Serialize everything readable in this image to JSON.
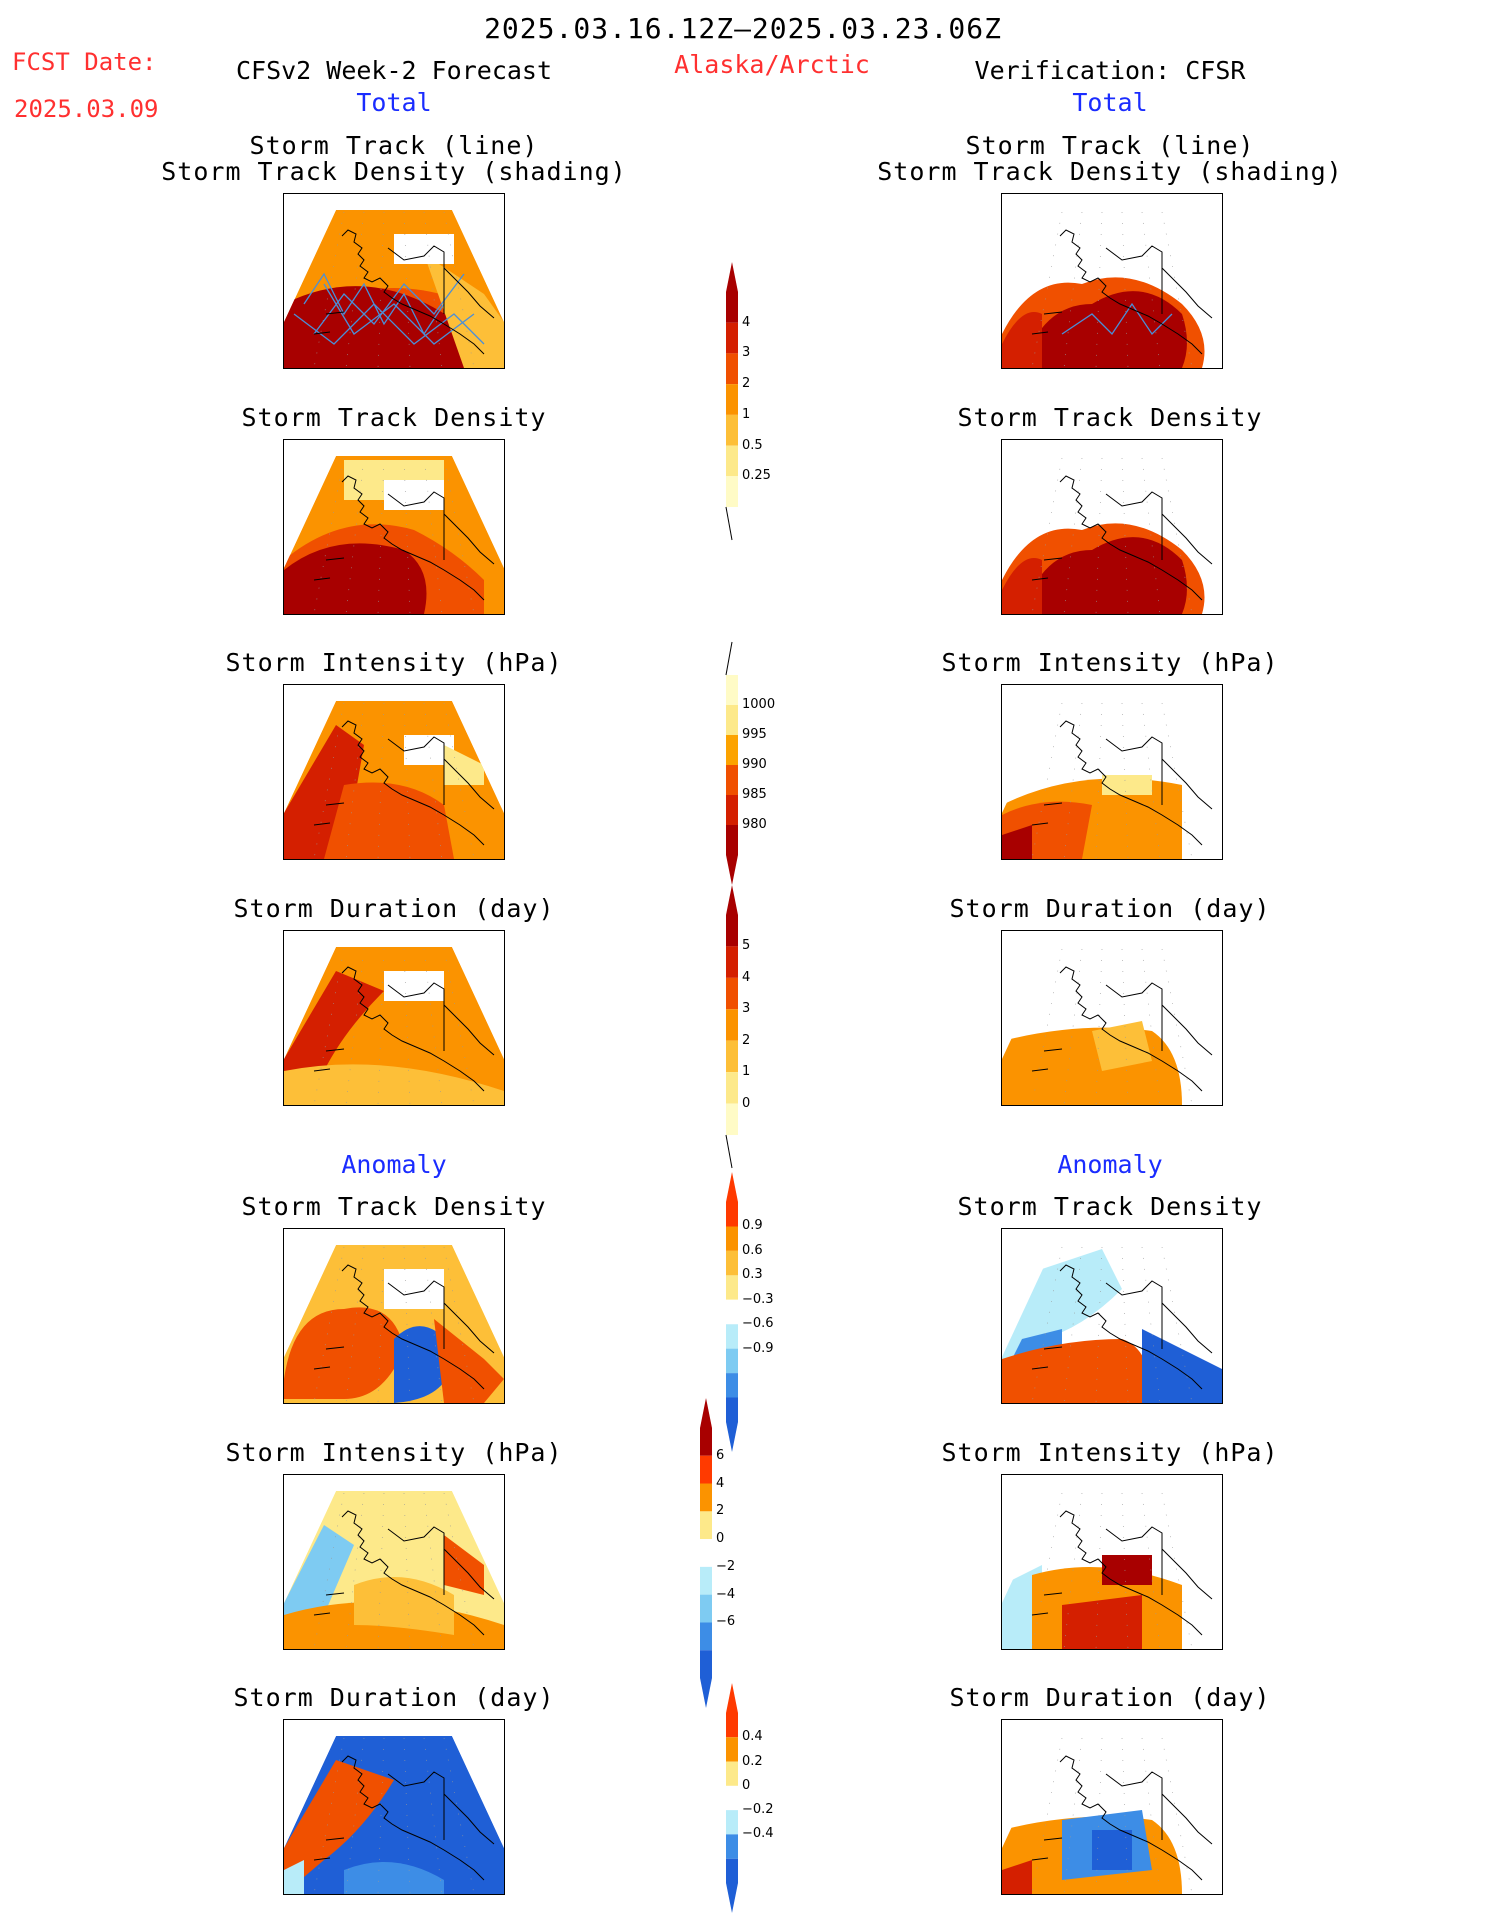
{
  "header": {
    "date_range": "2025.03.16.12Z–2025.03.23.06Z",
    "fcst_label": "FCST Date:",
    "fcst_date": "2025.03.09",
    "forecast_title": "CFSv2 Week-2 Forecast",
    "region": "Alaska/Arctic",
    "verification_title": "Verification: CFSR"
  },
  "sections": {
    "total": "Total",
    "anomaly": "Anomaly"
  },
  "titles": {
    "track_line": "Storm Track (line)",
    "track_shading": "Storm Track Density (shading)",
    "density": "Storm Track Density",
    "intensity": "Storm Intensity (hPa)",
    "duration": "Storm Duration (day)"
  },
  "colorbars": {
    "density": {
      "labels": [
        "4",
        "3",
        "2",
        "1",
        "0.5",
        "0.25"
      ],
      "colors": [
        "#a80000",
        "#d41f00",
        "#f05000",
        "#fb9300",
        "#fdbf38",
        "#fde98a",
        "#fffbc6"
      ]
    },
    "intensity": {
      "labels": [
        "1000",
        "995",
        "990",
        "985",
        "980"
      ],
      "colors": [
        "#fffbc6",
        "#fde98a",
        "#fca300",
        "#f05000",
        "#d41f00",
        "#a80000"
      ]
    },
    "duration": {
      "labels": [
        "5",
        "4",
        "3",
        "2",
        "1",
        "0"
      ],
      "colors": [
        "#a80000",
        "#d41f00",
        "#f05000",
        "#fb9300",
        "#fdbf38",
        "#fde98a",
        "#fffbc6"
      ]
    },
    "anom_density": {
      "labels": [
        "0.9",
        "0.6",
        "0.3",
        "−0.3",
        "−0.6",
        "−0.9"
      ],
      "colors": [
        "#ff3a00",
        "#fb9300",
        "#fdbf38",
        "#fde98a",
        "#ffffff",
        "#b8ecf9",
        "#7ecbf2",
        "#3d8de6",
        "#1f5fd6"
      ]
    },
    "anom_intensity": {
      "labels": [
        "6",
        "4",
        "2",
        "0",
        "−2",
        "−4",
        "−6"
      ],
      "colors": [
        "#a80000",
        "#ff3a00",
        "#fb9300",
        "#fde98a",
        "#ffffff",
        "#b8ecf9",
        "#7ecbf2",
        "#3d8de6",
        "#1f5fd6"
      ]
    },
    "anom_duration": {
      "labels": [
        "0.4",
        "0.2",
        "0",
        "−0.2",
        "−0.4"
      ],
      "colors": [
        "#ff3a00",
        "#fb9300",
        "#fde98a",
        "#ffffff",
        "#b8ecf9",
        "#3d8de6",
        "#1f5fd6"
      ]
    }
  }
}
